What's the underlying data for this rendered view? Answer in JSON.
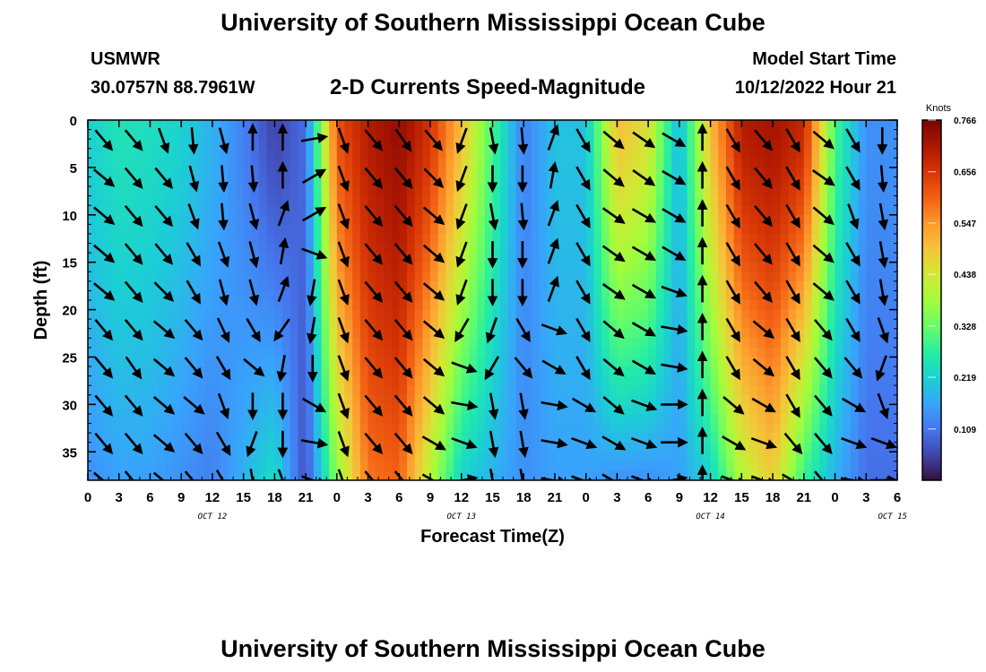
{
  "page": {
    "title_top": "University of Southern Mississippi Ocean Cube",
    "title_bottom": "University of Southern Mississippi Ocean Cube",
    "station": "USMWR",
    "coordinates": "30.0757N  88.7961W",
    "subtitle": "2-D Currents Speed-Magnitude",
    "model_start_label": "Model Start Time",
    "model_start_value": "10/12/2022 Hour 21"
  },
  "chart_data": {
    "type": "heatmap",
    "title": "2-D Currents Speed-Magnitude",
    "xlabel": "Forecast Time(Z)",
    "ylabel": "Depth (ft)",
    "x_ticks": [
      "0",
      "3",
      "6",
      "9",
      "12",
      "15",
      "18",
      "21",
      "0",
      "3",
      "6",
      "9",
      "12",
      "15",
      "18",
      "21",
      "0",
      "3",
      "6",
      "9",
      "12",
      "15",
      "18",
      "21",
      "0",
      "3",
      "6"
    ],
    "date_labels": [
      "OCT 12",
      "OCT 13",
      "OCT 14",
      "OCT 15"
    ],
    "y_ticks": [
      "0",
      "5",
      "10",
      "15",
      "20",
      "25",
      "30",
      "35"
    ],
    "ylim": [
      0,
      38
    ],
    "y_reversed": true,
    "colorbar": {
      "unit": "Knots",
      "ticks": [
        "0.766",
        "0.656",
        "0.547",
        "0.438",
        "0.328",
        "0.219",
        "0.109"
      ],
      "min": 0,
      "max": 0.766
    },
    "speed_profile": {
      "note": "approximate depth-averaged speed (knots) at each forecast hour 0..78",
      "hours": [
        0,
        3,
        6,
        9,
        12,
        15,
        18,
        21,
        24,
        27,
        30,
        33,
        36,
        39,
        42,
        45,
        48,
        51,
        54,
        57,
        60,
        63,
        66,
        69,
        72,
        75,
        78
      ],
      "surface": [
        0.22,
        0.25,
        0.24,
        0.22,
        0.18,
        0.12,
        0.05,
        0.1,
        0.62,
        0.7,
        0.74,
        0.66,
        0.5,
        0.3,
        0.12,
        0.2,
        0.2,
        0.5,
        0.45,
        0.18,
        0.5,
        0.7,
        0.72,
        0.68,
        0.3,
        0.14,
        0.14
      ],
      "bottom": [
        0.14,
        0.16,
        0.16,
        0.14,
        0.12,
        0.18,
        0.24,
        0.06,
        0.36,
        0.58,
        0.6,
        0.4,
        0.22,
        0.18,
        0.14,
        0.16,
        0.16,
        0.14,
        0.14,
        0.16,
        0.22,
        0.4,
        0.48,
        0.28,
        0.18,
        0.1,
        0.1
      ]
    },
    "arrow_directions_deg": [
      [
        140,
        140,
        160,
        175,
        165,
        0,
        0,
        80,
        160,
        140,
        145,
        140,
        200,
        170,
        175,
        20,
        150,
        130,
        125,
        120,
        0,
        150,
        140,
        150,
        130,
        150,
        180
      ],
      [
        130,
        140,
        140,
        165,
        175,
        175,
        0,
        60,
        160,
        140,
        140,
        135,
        200,
        180,
        180,
        10,
        150,
        130,
        125,
        120,
        0,
        150,
        140,
        150,
        125,
        150,
        175
      ],
      [
        130,
        140,
        140,
        160,
        175,
        165,
        20,
        60,
        160,
        140,
        140,
        130,
        200,
        170,
        175,
        20,
        150,
        125,
        120,
        120,
        0,
        150,
        140,
        150,
        130,
        160,
        170
      ],
      [
        130,
        140,
        140,
        150,
        160,
        165,
        10,
        110,
        160,
        140,
        140,
        130,
        200,
        180,
        180,
        20,
        150,
        125,
        120,
        120,
        0,
        150,
        140,
        150,
        130,
        150,
        170
      ],
      [
        130,
        140,
        135,
        150,
        165,
        165,
        20,
        190,
        160,
        140,
        140,
        130,
        200,
        180,
        180,
        20,
        150,
        125,
        120,
        110,
        0,
        150,
        140,
        150,
        130,
        150,
        170
      ],
      [
        140,
        140,
        130,
        140,
        155,
        150,
        215,
        190,
        160,
        140,
        140,
        130,
        210,
        200,
        150,
        110,
        150,
        130,
        120,
        100,
        0,
        150,
        130,
        150,
        140,
        150,
        160
      ],
      [
        140,
        145,
        130,
        140,
        150,
        130,
        190,
        180,
        160,
        140,
        140,
        130,
        110,
        210,
        140,
        120,
        150,
        130,
        120,
        100,
        0,
        150,
        130,
        150,
        140,
        140,
        200
      ],
      [
        140,
        140,
        130,
        130,
        160,
        180,
        180,
        120,
        160,
        140,
        140,
        130,
        100,
        170,
        170,
        100,
        120,
        130,
        110,
        90,
        0,
        130,
        120,
        150,
        140,
        120,
        160
      ],
      [
        140,
        140,
        130,
        140,
        150,
        200,
        180,
        100,
        160,
        140,
        140,
        120,
        110,
        170,
        170,
        100,
        110,
        120,
        110,
        90,
        0,
        120,
        110,
        140,
        140,
        110,
        110
      ],
      [
        130,
        140,
        130,
        140,
        150,
        170,
        160,
        110,
        160,
        140,
        140,
        120,
        80,
        170,
        170,
        100,
        110,
        120,
        110,
        80,
        0,
        110,
        110,
        120,
        140,
        100,
        90
      ]
    ]
  }
}
